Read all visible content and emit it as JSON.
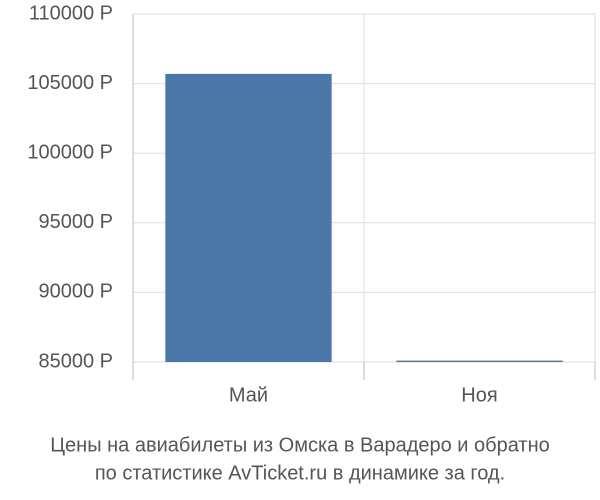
{
  "chart_data": {
    "type": "bar",
    "title": [
      "Цены на авиабилеты из Омска в Варадеро и обратно",
      "по статистике AvTicket.ru в динамике за год."
    ],
    "categories": [
      "Май",
      "Ноя"
    ],
    "values": [
      105700,
      85100
    ],
    "color": "#4a76a8",
    "ylim": [
      85000,
      110000
    ],
    "yticks": [
      {
        "value": 85000,
        "label": "85000 Р"
      },
      {
        "value": 90000,
        "label": "90000 Р"
      },
      {
        "value": 95000,
        "label": "95000 Р"
      },
      {
        "value": 100000,
        "label": "100000 Р"
      },
      {
        "value": 105000,
        "label": "105000 Р"
      },
      {
        "value": 110000,
        "label": "110000 Р"
      }
    ],
    "grid": true
  }
}
